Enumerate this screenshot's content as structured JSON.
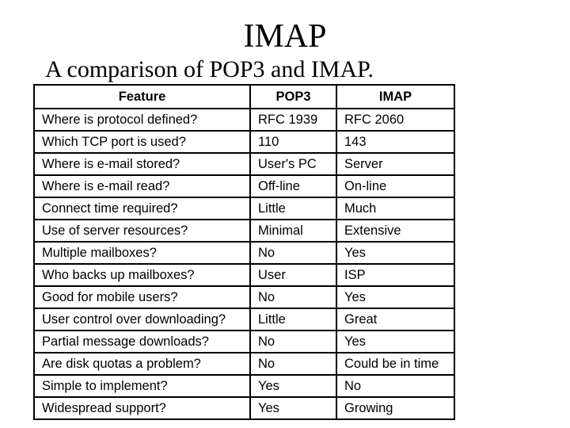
{
  "slide": {
    "title": "IMAP",
    "subtitle": "A comparison of POP3 and IMAP."
  },
  "table": {
    "headers": [
      "Feature",
      "POP3",
      "IMAP"
    ],
    "rows": [
      [
        "Where is protocol defined?",
        "RFC 1939",
        "RFC 2060"
      ],
      [
        "Which TCP port is used?",
        "110",
        "143"
      ],
      [
        "Where is e-mail stored?",
        "User's PC",
        "Server"
      ],
      [
        "Where is e-mail read?",
        "Off-line",
        "On-line"
      ],
      [
        "Connect time required?",
        "Little",
        "Much"
      ],
      [
        "Use of server resources?",
        "Minimal",
        "Extensive"
      ],
      [
        "Multiple mailboxes?",
        "No",
        "Yes"
      ],
      [
        "Who backs up mailboxes?",
        "User",
        "ISP"
      ],
      [
        "Good for mobile users?",
        "No",
        "Yes"
      ],
      [
        "User control over downloading?",
        "Little",
        "Great"
      ],
      [
        "Partial message downloads?",
        "No",
        "Yes"
      ],
      [
        "Are disk quotas a problem?",
        "No",
        "Could be in time"
      ],
      [
        "Simple to implement?",
        "Yes",
        "No"
      ],
      [
        "Widespread support?",
        "Yes",
        "Growing"
      ]
    ]
  }
}
